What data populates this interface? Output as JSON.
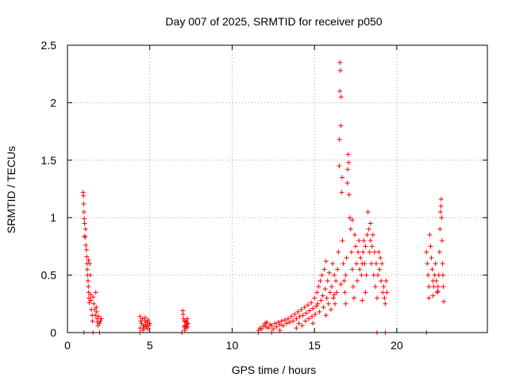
{
  "chart_data": {
    "type": "scatter",
    "title": "Day 007 of 2025, SRMTID for receiver p050",
    "xlabel": "GPS time / hours",
    "ylabel": "SRMTID / TECUs",
    "xlim": [
      0,
      25.5
    ],
    "ylim": [
      0,
      2.5
    ],
    "xticks": [
      0,
      5,
      10,
      15,
      20
    ],
    "yticks": [
      0,
      0.5,
      1,
      1.5,
      2,
      2.5
    ],
    "xtick_labels": [
      "0",
      "5",
      "10",
      "15",
      "20"
    ],
    "ytick_labels": [
      "0",
      "0.5",
      "1",
      "1.5",
      "2",
      "2.5"
    ],
    "grid": true,
    "marker": "+",
    "color": "#ff0000",
    "series": [
      {
        "name": "SRMTID",
        "points": [
          [
            0.95,
            1.22
          ],
          [
            0.97,
            1.19
          ],
          [
            0.99,
            1.12
          ],
          [
            1.0,
            1.05
          ],
          [
            1.02,
            0.99
          ],
          [
            1.04,
            0.95
          ],
          [
            1.05,
            0.84
          ],
          [
            1.07,
            0.83
          ],
          [
            1.1,
            0.9
          ],
          [
            1.12,
            0.76
          ],
          [
            1.15,
            0.72
          ],
          [
            1.17,
            0.66
          ],
          [
            1.19,
            0.6
          ],
          [
            1.2,
            0.55
          ],
          [
            1.22,
            0.5
          ],
          [
            1.25,
            0.45
          ],
          [
            1.27,
            0.4
          ],
          [
            1.29,
            0.35
          ],
          [
            1.3,
            0.3
          ],
          [
            1.32,
            0.26
          ],
          [
            1.28,
            0.63
          ],
          [
            1.35,
            0.6
          ],
          [
            1.38,
            0.5
          ],
          [
            1.4,
            0.33
          ],
          [
            1.42,
            0.28
          ],
          [
            1.45,
            0.2
          ],
          [
            1.5,
            0.15
          ],
          [
            1.52,
            0.1
          ],
          [
            1.55,
            0.31
          ],
          [
            1.6,
            0.25
          ],
          [
            1.65,
            0.2
          ],
          [
            1.7,
            0.15
          ],
          [
            1.72,
            0.35
          ],
          [
            1.75,
            0.22
          ],
          [
            1.78,
            0.18
          ],
          [
            1.8,
            0.12
          ],
          [
            1.82,
            0.09
          ],
          [
            1.85,
            0.06
          ],
          [
            1.9,
            0.14
          ],
          [
            1.95,
            0.08
          ],
          [
            2.0,
            0.1
          ],
          [
            2.05,
            0.12
          ],
          [
            1.0,
            0.0
          ],
          [
            1.55,
            0.0
          ],
          [
            1.95,
            0.0
          ],
          [
            4.4,
            0.14
          ],
          [
            4.45,
            0.1
          ],
          [
            4.5,
            0.08
          ],
          [
            4.55,
            0.12
          ],
          [
            4.6,
            0.06
          ],
          [
            4.65,
            0.04
          ],
          [
            4.7,
            0.1
          ],
          [
            4.75,
            0.07
          ],
          [
            4.8,
            0.05
          ],
          [
            4.85,
            0.09
          ],
          [
            4.9,
            0.11
          ],
          [
            4.95,
            0.06
          ],
          [
            5.0,
            0.08
          ],
          [
            4.42,
            0.04
          ],
          [
            4.58,
            0.02
          ],
          [
            4.72,
            0.13
          ],
          [
            4.88,
            0.03
          ],
          [
            4.4,
            0.0
          ],
          [
            7.0,
            0.19
          ],
          [
            7.02,
            0.16
          ],
          [
            7.05,
            0.12
          ],
          [
            7.08,
            0.05
          ],
          [
            7.1,
            0.1
          ],
          [
            7.12,
            0.02
          ],
          [
            7.15,
            0.06
          ],
          [
            7.18,
            0.09
          ],
          [
            7.2,
            0.04
          ],
          [
            7.22,
            0.1
          ],
          [
            7.25,
            0.07
          ],
          [
            7.28,
            0.12
          ],
          [
            7.3,
            0.05
          ],
          [
            7.32,
            0.08
          ],
          [
            6.95,
            0.0
          ],
          [
            11.6,
            0.02
          ],
          [
            11.7,
            0.04
          ],
          [
            11.8,
            0.03
          ],
          [
            11.9,
            0.06
          ],
          [
            12.0,
            0.08
          ],
          [
            12.05,
            0.05
          ],
          [
            12.1,
            0.09
          ],
          [
            12.2,
            0.04
          ],
          [
            12.3,
            0.07
          ],
          [
            12.4,
            0.06
          ],
          [
            12.5,
            0.03
          ],
          [
            12.6,
            0.08
          ],
          [
            12.7,
            0.05
          ],
          [
            12.8,
            0.09
          ],
          [
            12.9,
            0.07
          ],
          [
            13.0,
            0.1
          ],
          [
            13.1,
            0.06
          ],
          [
            13.2,
            0.11
          ],
          [
            13.3,
            0.08
          ],
          [
            13.4,
            0.12
          ],
          [
            13.5,
            0.09
          ],
          [
            13.6,
            0.14
          ],
          [
            13.7,
            0.1
          ],
          [
            13.8,
            0.16
          ],
          [
            13.9,
            0.12
          ],
          [
            14.0,
            0.18
          ],
          [
            14.05,
            0.08
          ],
          [
            14.1,
            0.14
          ],
          [
            14.2,
            0.2
          ],
          [
            14.25,
            0.06
          ],
          [
            14.3,
            0.15
          ],
          [
            14.4,
            0.22
          ],
          [
            14.45,
            0.1
          ],
          [
            14.5,
            0.17
          ],
          [
            14.6,
            0.24
          ],
          [
            14.65,
            0.12
          ],
          [
            14.7,
            0.19
          ],
          [
            14.8,
            0.26
          ],
          [
            14.85,
            0.14
          ],
          [
            14.9,
            0.21
          ],
          [
            15.0,
            0.3
          ],
          [
            15.05,
            0.16
          ],
          [
            15.1,
            0.23
          ],
          [
            15.15,
            0.35
          ],
          [
            15.2,
            0.25
          ],
          [
            15.25,
            0.4
          ],
          [
            15.3,
            0.18
          ],
          [
            15.35,
            0.45
          ],
          [
            15.4,
            0.28
          ],
          [
            15.45,
            0.5
          ],
          [
            15.5,
            0.32
          ],
          [
            15.55,
            0.22
          ],
          [
            15.6,
            0.55
          ],
          [
            15.65,
            0.38
          ],
          [
            15.7,
            0.62
          ],
          [
            15.75,
            0.3
          ],
          [
            15.8,
            0.45
          ],
          [
            15.85,
            0.25
          ],
          [
            15.9,
            0.52
          ],
          [
            15.95,
            0.35
          ],
          [
            16.0,
            0.2
          ],
          [
            16.05,
            0.4
          ],
          [
            16.1,
            0.6
          ],
          [
            16.15,
            0.3
          ],
          [
            16.2,
            0.5
          ],
          [
            16.25,
            0.25
          ],
          [
            16.3,
            0.45
          ],
          [
            16.35,
            0.35
          ],
          [
            16.4,
            0.55
          ],
          [
            16.45,
            0.7
          ],
          [
            16.5,
            1.45
          ],
          [
            16.52,
            1.68
          ],
          [
            16.54,
            2.1
          ],
          [
            16.55,
            2.35
          ],
          [
            16.57,
            2.28
          ],
          [
            16.6,
            1.8
          ],
          [
            16.62,
            2.05
          ],
          [
            16.65,
            1.22
          ],
          [
            16.68,
            1.35
          ],
          [
            16.7,
            0.8
          ],
          [
            16.75,
            0.6
          ],
          [
            16.8,
            0.45
          ],
          [
            16.85,
            0.35
          ],
          [
            16.9,
            0.5
          ],
          [
            16.95,
            0.65
          ],
          [
            17.0,
            1.3
          ],
          [
            17.02,
            1.42
          ],
          [
            17.05,
            1.55
          ],
          [
            17.08,
            1.48
          ],
          [
            17.1,
            1.2
          ],
          [
            17.15,
            1.0
          ],
          [
            17.2,
            0.9
          ],
          [
            17.25,
            0.7
          ],
          [
            17.3,
            0.55
          ],
          [
            17.35,
            0.4
          ],
          [
            17.4,
            0.3
          ],
          [
            17.45,
            0.85
          ],
          [
            17.5,
            0.75
          ],
          [
            17.55,
            0.6
          ],
          [
            17.6,
            0.45
          ],
          [
            17.65,
            0.7
          ],
          [
            17.7,
            0.8
          ],
          [
            17.75,
            0.55
          ],
          [
            17.8,
            0.65
          ],
          [
            17.85,
            0.5
          ],
          [
            17.9,
            0.6
          ],
          [
            17.95,
            0.7
          ],
          [
            18.0,
            0.8
          ],
          [
            18.05,
            0.6
          ],
          [
            18.1,
            0.75
          ],
          [
            18.15,
            0.5
          ],
          [
            18.2,
            0.85
          ],
          [
            18.25,
            1.05
          ],
          [
            18.3,
            0.9
          ],
          [
            18.35,
            0.7
          ],
          [
            18.4,
            0.8
          ],
          [
            18.45,
            0.6
          ],
          [
            18.5,
            0.75
          ],
          [
            18.55,
            0.85
          ],
          [
            18.6,
            0.5
          ],
          [
            18.65,
            0.7
          ],
          [
            18.7,
            0.4
          ],
          [
            18.75,
            0.6
          ],
          [
            18.8,
            0.3
          ],
          [
            18.85,
            0.5
          ],
          [
            18.9,
            0.7
          ],
          [
            18.95,
            0.55
          ],
          [
            19.0,
            0.65
          ],
          [
            19.05,
            0.45
          ],
          [
            19.1,
            0.6
          ],
          [
            19.15,
            0.35
          ],
          [
            19.2,
            0.4
          ],
          [
            19.25,
            0.3
          ],
          [
            19.3,
            0.25
          ],
          [
            19.35,
            0.45
          ],
          [
            19.4,
            0.35
          ],
          [
            16.2,
            0.33
          ],
          [
            16.6,
            0.42
          ],
          [
            17.3,
            0.98
          ],
          [
            18.4,
            0.95
          ],
          [
            18.1,
            0.35
          ],
          [
            17.9,
            0.28
          ],
          [
            16.9,
            0.25
          ],
          [
            15.7,
            0.15
          ],
          [
            14.9,
            0.08
          ],
          [
            13.9,
            0.04
          ],
          [
            12.9,
            0.02
          ],
          [
            11.6,
            0.0
          ],
          [
            12.4,
            0.0
          ],
          [
            18.8,
            0.0
          ],
          [
            19.3,
            0.0
          ],
          [
            21.8,
            0.7
          ],
          [
            21.85,
            0.6
          ],
          [
            21.9,
            0.5
          ],
          [
            21.95,
            0.4
          ],
          [
            22.0,
            0.85
          ],
          [
            22.05,
            0.75
          ],
          [
            22.1,
            0.65
          ],
          [
            22.15,
            0.55
          ],
          [
            22.2,
            0.45
          ],
          [
            22.25,
            0.4
          ],
          [
            22.3,
            0.5
          ],
          [
            22.35,
            0.6
          ],
          [
            22.4,
            0.45
          ],
          [
            22.45,
            0.35
          ],
          [
            22.5,
            0.4
          ],
          [
            22.55,
            0.5
          ],
          [
            22.6,
            0.7
          ],
          [
            22.62,
            0.9
          ],
          [
            22.65,
            1.05
          ],
          [
            22.68,
            1.1
          ],
          [
            22.7,
            1.16
          ],
          [
            22.72,
            1.0
          ],
          [
            22.75,
            0.8
          ],
          [
            22.78,
            0.6
          ],
          [
            22.8,
            0.5
          ],
          [
            22.82,
            0.4
          ],
          [
            22.85,
            0.27
          ],
          [
            21.95,
            0.3
          ],
          [
            22.2,
            0.32
          ],
          [
            22.5,
            0.36
          ],
          [
            21.8,
            0.0
          ]
        ]
      }
    ]
  }
}
